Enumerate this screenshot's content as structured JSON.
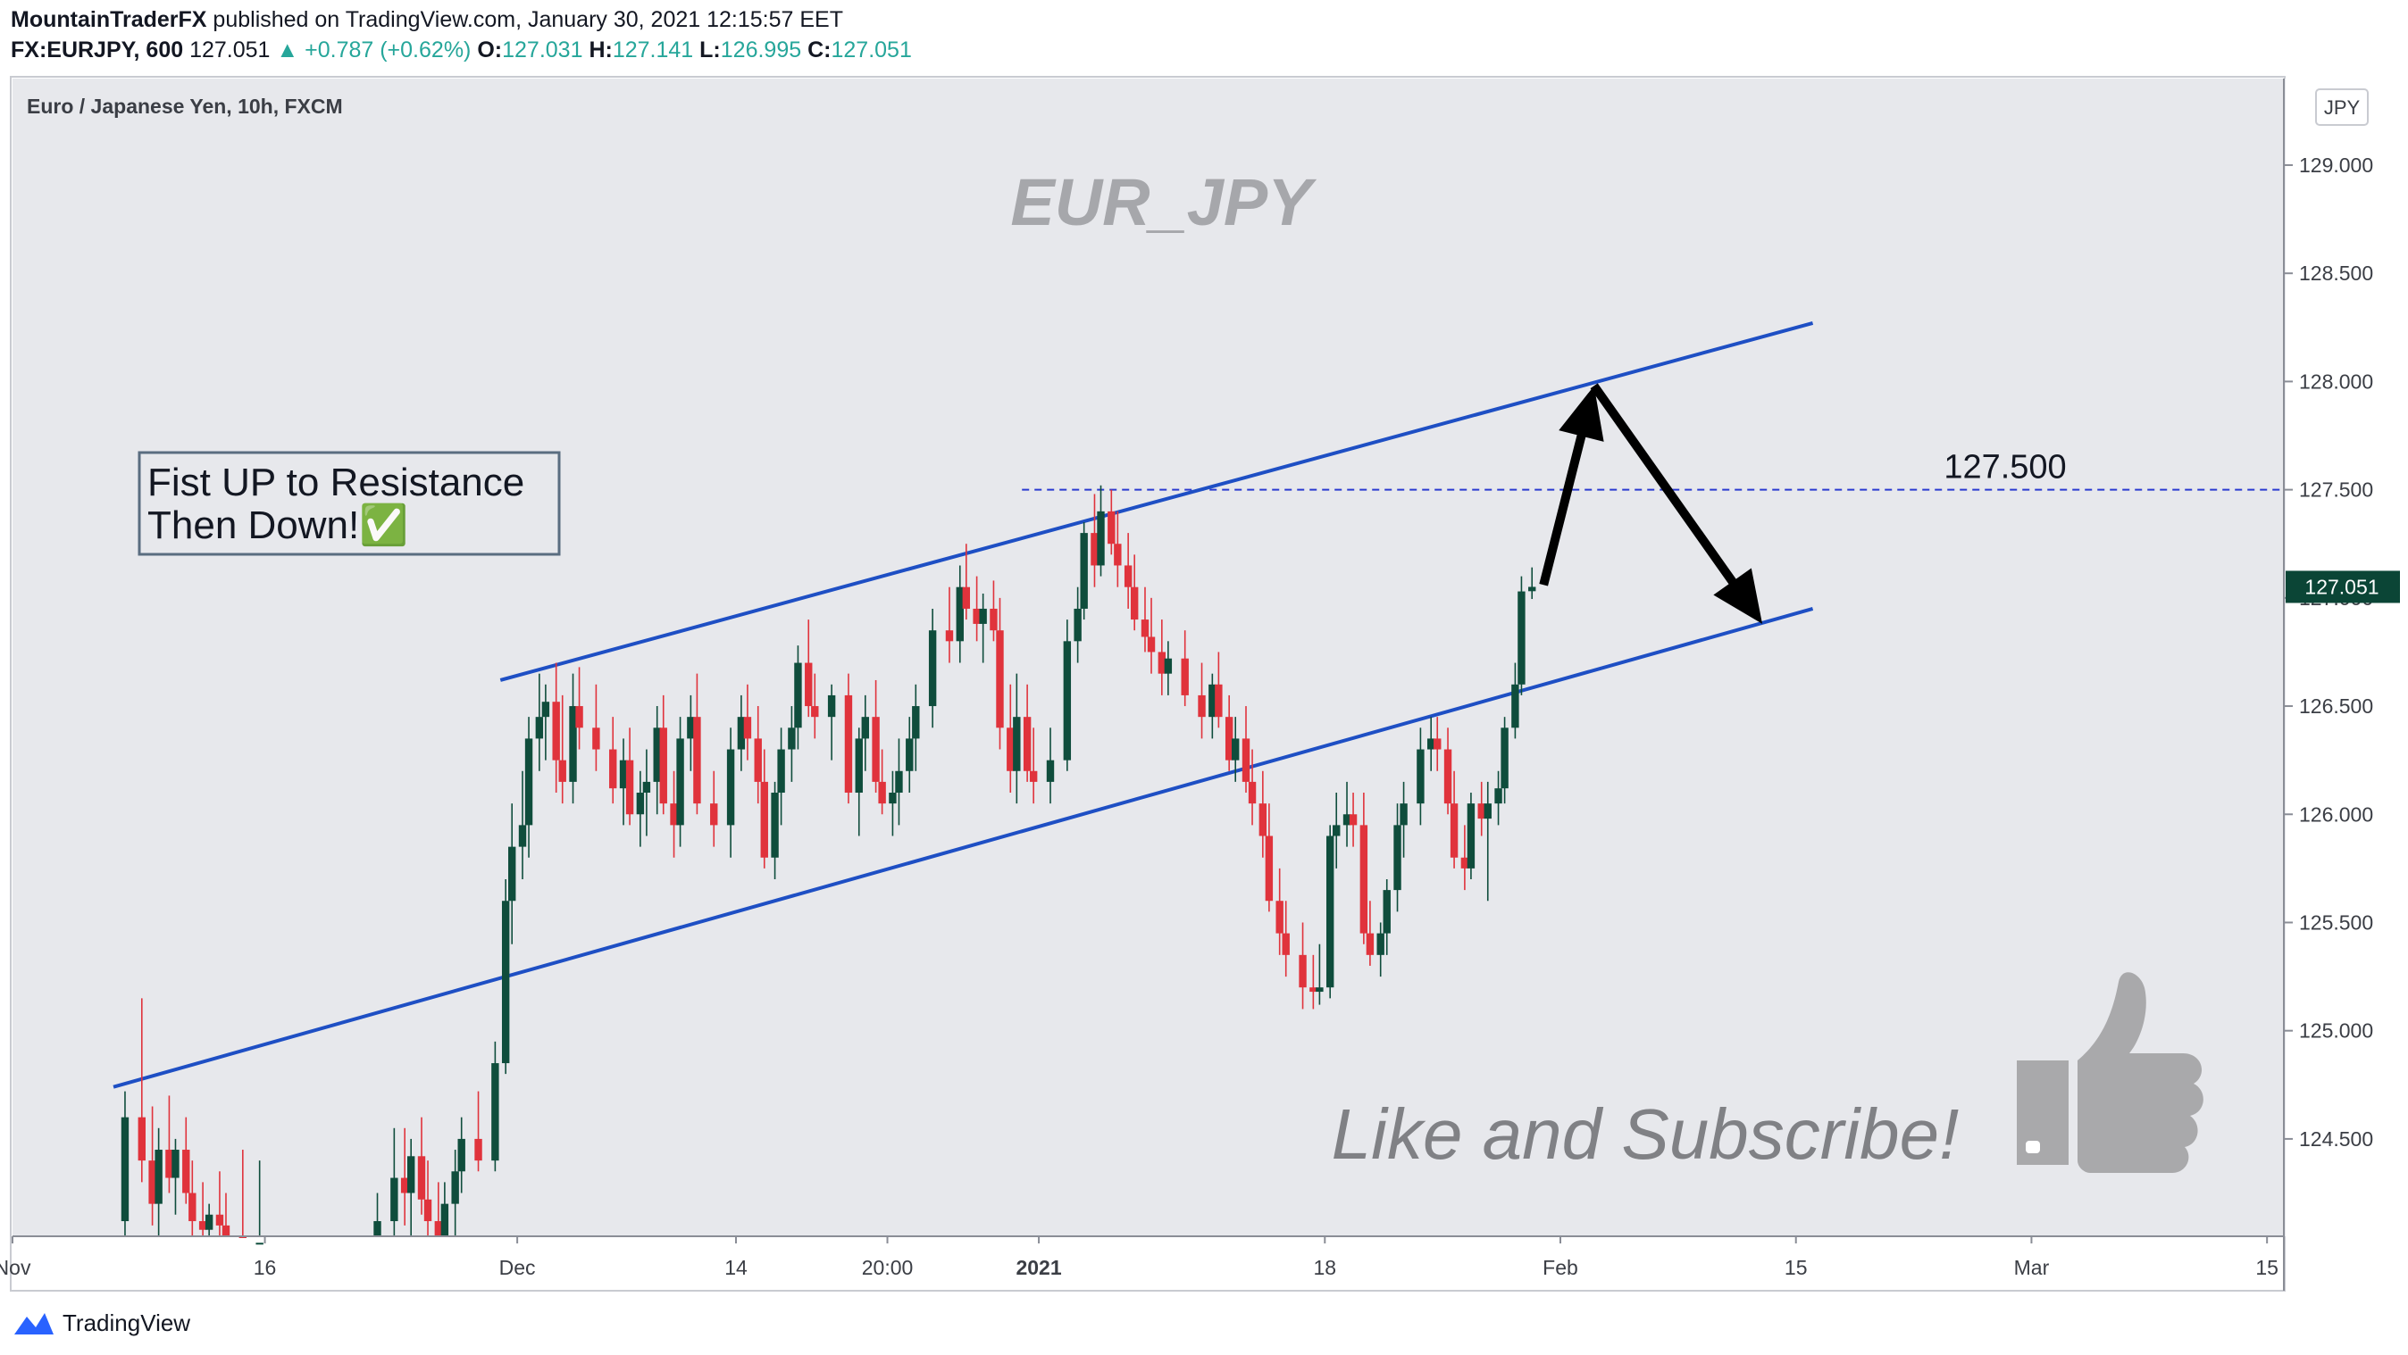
{
  "header": {
    "author": "MountainTraderFX",
    "published_text": "published on TradingView.com, January 30, 2021 12:15:57 EET",
    "symbol_line": "FX:EURJPY, 600",
    "last": "127.051",
    "change": "+0.787 (+0.62%)",
    "open_label": "O:",
    "open": "127.031",
    "high_label": "H:",
    "high": "127.141",
    "low_label": "L:",
    "low": "126.995",
    "close_label": "C:",
    "close": "127.051"
  },
  "footer": {
    "brand": "TradingView"
  },
  "chart_data": {
    "type": "candlestick",
    "instrument": "Euro / Japanese Yen, 10h, FXCM",
    "watermark": "EUR_JPY",
    "currency_badge": "JPY",
    "price_tag": "127.051",
    "annotation_box": [
      "Fist UP to Resistance",
      "Then Down!✅"
    ],
    "level_label": "127.500",
    "cta_text": "Like and Subscribe!",
    "y_ticks": [
      "129.000",
      "128.500",
      "128.000",
      "127.500",
      "127.000",
      "126.500",
      "126.000",
      "125.500",
      "125.000",
      "124.500"
    ],
    "x_ticks": [
      "Nov",
      "16",
      "Dec",
      "14",
      "20:00",
      "2021",
      "18",
      "Feb",
      "15",
      "Mar",
      "15"
    ],
    "ylim": [
      124.05,
      129.4
    ],
    "x_range_days": [
      "2020-11-01",
      "2021-03-16"
    ],
    "colors": {
      "up": "#0f4d3c",
      "down": "#e0333c",
      "channel": "#1e4fc4",
      "level": "#2a3ad0",
      "bg": "#e7e8ec"
    },
    "channel": {
      "upper": [
        [
          "2020-11-30",
          126.62
        ],
        [
          "2021-02-16",
          128.27
        ]
      ],
      "lower": [
        [
          "2020-11-07",
          124.74
        ],
        [
          "2021-02-16",
          126.95
        ]
      ]
    },
    "horizontal_level": {
      "price": 127.5,
      "from": "2020-12-31"
    },
    "projection": [
      [
        "2021-01-31",
        127.06
      ],
      [
        "2021-02-03",
        127.98
      ],
      [
        "2021-02-13",
        126.88
      ]
    ],
    "candles": [
      [
        "2020-11-08",
        124.12,
        124.72,
        124.0,
        124.6
      ],
      [
        "2020-11-09",
        124.6,
        125.15,
        124.3,
        124.4
      ],
      [
        "2020-11-09",
        124.4,
        124.65,
        124.1,
        124.2
      ],
      [
        "2020-11-10",
        124.2,
        124.55,
        124.0,
        124.45
      ],
      [
        "2020-11-10",
        124.45,
        124.7,
        124.25,
        124.32
      ],
      [
        "2020-11-11",
        124.32,
        124.5,
        124.15,
        124.45
      ],
      [
        "2020-11-11",
        124.45,
        124.6,
        124.2,
        124.25
      ],
      [
        "2020-11-12",
        124.25,
        124.4,
        124.05,
        124.12
      ],
      [
        "2020-11-12",
        124.12,
        124.3,
        124.0,
        124.08
      ],
      [
        "2020-11-13",
        124.08,
        124.2,
        124.0,
        124.15
      ],
      [
        "2020-11-13",
        124.15,
        124.35,
        124.0,
        124.1
      ],
      [
        "2020-11-14",
        124.1,
        124.25,
        124.0,
        124.05
      ],
      [
        "2020-11-15",
        124.05,
        124.45,
        124.0,
        124.0
      ],
      [
        "2020-11-16",
        124.0,
        124.4,
        124.0,
        124.02
      ],
      [
        "2020-11-23",
        124.0,
        124.25,
        124.0,
        124.12
      ],
      [
        "2020-11-24",
        124.12,
        124.55,
        124.0,
        124.32
      ],
      [
        "2020-11-24",
        124.32,
        124.55,
        124.1,
        124.25
      ],
      [
        "2020-11-25",
        124.25,
        124.5,
        124.05,
        124.42
      ],
      [
        "2020-11-25",
        124.42,
        124.6,
        124.15,
        124.22
      ],
      [
        "2020-11-26",
        124.22,
        124.4,
        124.0,
        124.12
      ],
      [
        "2020-11-26",
        124.12,
        124.3,
        124.0,
        124.05
      ],
      [
        "2020-11-27",
        124.05,
        124.3,
        124.0,
        124.2
      ],
      [
        "2020-11-27",
        124.2,
        124.45,
        124.05,
        124.35
      ],
      [
        "2020-11-28",
        124.35,
        124.6,
        124.25,
        124.5
      ],
      [
        "2020-11-29",
        124.5,
        124.72,
        124.35,
        124.4
      ],
      [
        "2020-11-30",
        124.4,
        124.95,
        124.35,
        124.85
      ],
      [
        "2020-11-30",
        124.85,
        125.7,
        124.8,
        125.6
      ],
      [
        "2020-12-01",
        125.6,
        126.05,
        125.4,
        125.85
      ],
      [
        "2020-12-01",
        125.85,
        126.2,
        125.7,
        125.95
      ],
      [
        "2020-12-02",
        125.95,
        126.45,
        125.8,
        126.35
      ],
      [
        "2020-12-02",
        126.35,
        126.65,
        126.2,
        126.45
      ],
      [
        "2020-12-03",
        126.45,
        126.6,
        126.25,
        126.52
      ],
      [
        "2020-12-03",
        126.52,
        126.7,
        126.1,
        126.25
      ],
      [
        "2020-12-04",
        126.25,
        126.55,
        126.05,
        126.15
      ],
      [
        "2020-12-04",
        126.15,
        126.65,
        126.05,
        126.5
      ],
      [
        "2020-12-05",
        126.5,
        126.68,
        126.3,
        126.4
      ],
      [
        "2020-12-06",
        126.4,
        126.6,
        126.2,
        126.3
      ],
      [
        "2020-12-07",
        126.3,
        126.45,
        126.05,
        126.12
      ],
      [
        "2020-12-07",
        126.12,
        126.35,
        125.95,
        126.25
      ],
      [
        "2020-12-08",
        126.25,
        126.4,
        125.95,
        126.0
      ],
      [
        "2020-12-08",
        126.0,
        126.2,
        125.85,
        126.1
      ],
      [
        "2020-12-09",
        126.1,
        126.3,
        125.9,
        126.15
      ],
      [
        "2020-12-09",
        126.15,
        126.5,
        126.0,
        126.4
      ],
      [
        "2020-12-10",
        126.4,
        126.55,
        126.0,
        126.05
      ],
      [
        "2020-12-10",
        126.05,
        126.2,
        125.8,
        125.95
      ],
      [
        "2020-12-11",
        125.95,
        126.45,
        125.85,
        126.35
      ],
      [
        "2020-12-11",
        126.35,
        126.55,
        126.2,
        126.45
      ],
      [
        "2020-12-12",
        126.45,
        126.65,
        126.0,
        126.05
      ],
      [
        "2020-12-13",
        126.05,
        126.2,
        125.85,
        125.95
      ],
      [
        "2020-12-14",
        125.95,
        126.4,
        125.8,
        126.3
      ],
      [
        "2020-12-14",
        126.3,
        126.55,
        126.2,
        126.45
      ],
      [
        "2020-12-15",
        126.45,
        126.6,
        126.25,
        126.35
      ],
      [
        "2020-12-15",
        126.35,
        126.5,
        126.05,
        126.15
      ],
      [
        "2020-12-16",
        126.15,
        126.3,
        125.75,
        125.8
      ],
      [
        "2020-12-16",
        125.8,
        126.15,
        125.7,
        126.1
      ],
      [
        "2020-12-17",
        126.1,
        126.4,
        125.95,
        126.3
      ],
      [
        "2020-12-17",
        126.3,
        126.5,
        126.15,
        126.4
      ],
      [
        "2020-12-18",
        126.4,
        126.78,
        126.3,
        126.7
      ],
      [
        "2020-12-18",
        126.7,
        126.9,
        126.45,
        126.5
      ],
      [
        "2020-12-19",
        126.5,
        126.65,
        126.35,
        126.45
      ],
      [
        "2020-12-20",
        126.45,
        126.6,
        126.25,
        126.55
      ],
      [
        "2020-12-21",
        126.55,
        126.65,
        126.05,
        126.1
      ],
      [
        "2020-12-21",
        126.1,
        126.4,
        125.9,
        126.35
      ],
      [
        "2020-12-22",
        126.35,
        126.55,
        126.2,
        126.45
      ],
      [
        "2020-12-22",
        126.45,
        126.62,
        126.1,
        126.15
      ],
      [
        "2020-12-23",
        126.15,
        126.3,
        126.0,
        126.05
      ],
      [
        "2020-12-23",
        126.05,
        126.2,
        125.9,
        126.1
      ],
      [
        "2020-12-24",
        126.1,
        126.35,
        125.95,
        126.2
      ],
      [
        "2020-12-24",
        126.2,
        126.45,
        126.1,
        126.35
      ],
      [
        "2020-12-25",
        126.35,
        126.6,
        126.2,
        126.5
      ],
      [
        "2020-12-26",
        126.5,
        126.95,
        126.4,
        126.85
      ],
      [
        "2020-12-27",
        126.85,
        127.05,
        126.7,
        126.8
      ],
      [
        "2020-12-27",
        126.8,
        127.15,
        126.7,
        127.05
      ],
      [
        "2020-12-28",
        127.05,
        127.25,
        126.9,
        126.95
      ],
      [
        "2020-12-28",
        126.95,
        127.1,
        126.8,
        126.88
      ],
      [
        "2020-12-29",
        126.88,
        127.02,
        126.7,
        126.95
      ],
      [
        "2020-12-29",
        126.95,
        127.08,
        126.8,
        126.85
      ],
      [
        "2020-12-30",
        126.85,
        127.0,
        126.3,
        126.4
      ],
      [
        "2020-12-30",
        126.4,
        126.6,
        126.1,
        126.2
      ],
      [
        "2020-12-31",
        126.2,
        126.65,
        126.05,
        126.45
      ],
      [
        "2020-12-31",
        126.45,
        126.6,
        126.15,
        126.2
      ],
      [
        "2021-01-01",
        126.2,
        126.4,
        126.05,
        126.15
      ],
      [
        "2021-01-02",
        126.15,
        126.4,
        126.05,
        126.25
      ],
      [
        "2021-01-03",
        126.25,
        126.9,
        126.2,
        126.8
      ],
      [
        "2021-01-03",
        126.8,
        127.05,
        126.7,
        126.95
      ],
      [
        "2021-01-04",
        126.95,
        127.35,
        126.9,
        127.3
      ],
      [
        "2021-01-04",
        127.3,
        127.48,
        127.05,
        127.15
      ],
      [
        "2021-01-05",
        127.15,
        127.52,
        127.1,
        127.4
      ],
      [
        "2021-01-05",
        127.4,
        127.5,
        127.2,
        127.25
      ],
      [
        "2021-01-06",
        127.25,
        127.4,
        127.05,
        127.15
      ],
      [
        "2021-01-06",
        127.15,
        127.3,
        126.95,
        127.05
      ],
      [
        "2021-01-07",
        127.05,
        127.2,
        126.85,
        126.9
      ],
      [
        "2021-01-07",
        126.9,
        127.05,
        126.75,
        126.82
      ],
      [
        "2021-01-08",
        126.82,
        127.0,
        126.65,
        126.75
      ],
      [
        "2021-01-08",
        126.75,
        126.9,
        126.55,
        126.65
      ],
      [
        "2021-01-09",
        126.65,
        126.8,
        126.55,
        126.72
      ],
      [
        "2021-01-10",
        126.72,
        126.85,
        126.5,
        126.55
      ],
      [
        "2021-01-11",
        126.55,
        126.7,
        126.35,
        126.45
      ],
      [
        "2021-01-11",
        126.45,
        126.65,
        126.35,
        126.6
      ],
      [
        "2021-01-12",
        126.6,
        126.75,
        126.4,
        126.45
      ],
      [
        "2021-01-12",
        126.45,
        126.55,
        126.2,
        126.25
      ],
      [
        "2021-01-13",
        126.25,
        126.45,
        126.15,
        126.35
      ],
      [
        "2021-01-13",
        126.35,
        126.5,
        126.1,
        126.15
      ],
      [
        "2021-01-14",
        126.15,
        126.3,
        125.95,
        126.05
      ],
      [
        "2021-01-14",
        126.05,
        126.2,
        125.8,
        125.9
      ],
      [
        "2021-01-15",
        125.9,
        126.05,
        125.55,
        125.6
      ],
      [
        "2021-01-15",
        125.6,
        125.75,
        125.35,
        125.45
      ],
      [
        "2021-01-16",
        125.45,
        125.6,
        125.25,
        125.35
      ],
      [
        "2021-01-17",
        125.35,
        125.5,
        125.1,
        125.2
      ],
      [
        "2021-01-17",
        125.2,
        125.35,
        125.1,
        125.18
      ],
      [
        "2021-01-18",
        125.18,
        125.4,
        125.12,
        125.2
      ],
      [
        "2021-01-18",
        125.2,
        125.95,
        125.15,
        125.9
      ],
      [
        "2021-01-19",
        125.9,
        126.1,
        125.75,
        125.95
      ],
      [
        "2021-01-19",
        125.95,
        126.15,
        125.85,
        126.0
      ],
      [
        "2021-01-20",
        126.0,
        126.1,
        125.85,
        125.95
      ],
      [
        "2021-01-20",
        125.95,
        126.1,
        125.4,
        125.45
      ],
      [
        "2021-01-21",
        125.45,
        125.6,
        125.3,
        125.35
      ],
      [
        "2021-01-21",
        125.35,
        125.5,
        125.25,
        125.45
      ],
      [
        "2021-01-22",
        125.45,
        125.7,
        125.35,
        125.65
      ],
      [
        "2021-01-22",
        125.65,
        126.05,
        125.55,
        125.95
      ],
      [
        "2021-01-23",
        125.95,
        126.15,
        125.8,
        126.05
      ],
      [
        "2021-01-24",
        126.05,
        126.4,
        125.95,
        126.3
      ],
      [
        "2021-01-24",
        126.3,
        126.45,
        126.2,
        126.35
      ],
      [
        "2021-01-25",
        126.35,
        126.45,
        126.2,
        126.3
      ],
      [
        "2021-01-25",
        126.3,
        126.4,
        126.0,
        126.05
      ],
      [
        "2021-01-26",
        126.05,
        126.2,
        125.75,
        125.8
      ],
      [
        "2021-01-26",
        125.8,
        125.95,
        125.65,
        125.75
      ],
      [
        "2021-01-27",
        125.75,
        126.1,
        125.7,
        126.05
      ],
      [
        "2021-01-27",
        126.05,
        126.15,
        125.9,
        125.98
      ],
      [
        "2021-01-28",
        125.98,
        126.15,
        125.6,
        126.05
      ],
      [
        "2021-01-28",
        126.05,
        126.2,
        125.95,
        126.12
      ],
      [
        "2021-01-29",
        126.12,
        126.45,
        126.05,
        126.4
      ],
      [
        "2021-01-29",
        126.4,
        126.7,
        126.35,
        126.6
      ],
      [
        "2021-01-30",
        126.6,
        127.1,
        126.55,
        127.03
      ],
      [
        "2021-01-30",
        127.031,
        127.141,
        126.995,
        127.051
      ]
    ]
  }
}
